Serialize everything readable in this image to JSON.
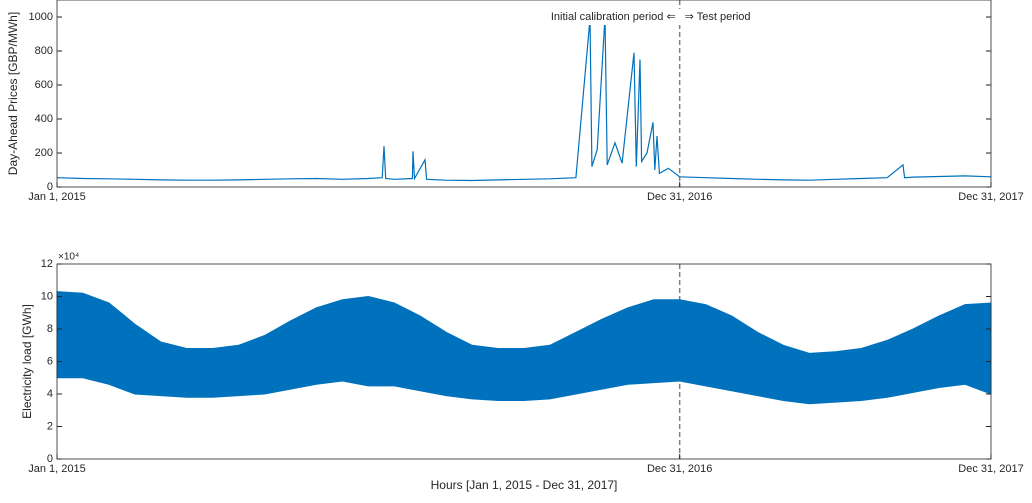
{
  "chart_data": [
    {
      "type": "line",
      "ylabel": "Day-Ahead Prices [GBP/MWh]",
      "color": "#0072BD",
      "x": [
        0,
        730,
        1460,
        2190,
        2920,
        3650,
        4380,
        5110,
        5840,
        6570,
        7300,
        8030,
        8760,
        9150,
        9200,
        9250,
        9490,
        10000,
        10017,
        10060,
        10354,
        10400,
        10950,
        11680,
        12410,
        13140,
        13870,
        14600,
        14997,
        15050,
        15200,
        15419,
        15480,
        15700,
        15900,
        16235,
        16300,
        16404,
        16450,
        16600,
        16770,
        16820,
        16882,
        16950,
        17200,
        17520,
        18250,
        18980,
        19710,
        20440,
        21170,
        21900,
        22630,
        23360,
        23803,
        23850,
        24090,
        24820,
        25550,
        26280
      ],
      "values": [
        55,
        50,
        48,
        45,
        42,
        40,
        40,
        42,
        45,
        48,
        50,
        45,
        50,
        55,
        240,
        50,
        45,
        50,
        210,
        50,
        160,
        45,
        40,
        38,
        42,
        45,
        48,
        55,
        990,
        120,
        220,
        1000,
        130,
        260,
        140,
        790,
        120,
        750,
        150,
        200,
        380,
        100,
        300,
        80,
        110,
        60,
        55,
        50,
        45,
        42,
        40,
        45,
        50,
        55,
        130,
        55,
        58,
        62,
        65,
        60
      ],
      "xlim": [
        0,
        26280
      ],
      "ylim": [
        0,
        1100
      ],
      "xticks": [
        {
          "value": 0,
          "label": "Jan 1, 2015"
        },
        {
          "value": 17520,
          "label": "Dec 31, 2016"
        },
        {
          "value": 26280,
          "label": "Dec 31, 2017"
        }
      ],
      "yticks": [
        0,
        200,
        400,
        600,
        800,
        1000
      ],
      "vline": 17520,
      "annotations": [
        "Initial calibration period ⇐",
        "⇒ Test period"
      ]
    },
    {
      "type": "band",
      "ylabel": "Electricity load [GWh]",
      "xlabel": "Hours [Jan 1, 2015 - Dec 31, 2017]",
      "y_multiplier": "×10⁴",
      "color": "#0072BD",
      "x": [
        0,
        730,
        1460,
        2190,
        2920,
        3650,
        4380,
        5110,
        5840,
        6570,
        7300,
        8030,
        8760,
        9490,
        10220,
        10950,
        11680,
        12410,
        13140,
        13870,
        14600,
        15330,
        16060,
        16790,
        17520,
        18250,
        18980,
        19710,
        20440,
        21170,
        21900,
        22630,
        23360,
        24090,
        24820,
        25550,
        26280
      ],
      "upper": [
        10.3,
        10.2,
        9.6,
        8.3,
        7.2,
        6.8,
        6.8,
        7.0,
        7.6,
        8.5,
        9.3,
        9.8,
        10.0,
        9.6,
        8.8,
        7.8,
        7.0,
        6.8,
        6.8,
        7.0,
        7.8,
        8.6,
        9.3,
        9.8,
        9.8,
        9.5,
        8.8,
        7.8,
        7.0,
        6.5,
        6.6,
        6.8,
        7.3,
        8.0,
        8.8,
        9.5,
        9.6
      ],
      "lower": [
        5.0,
        5.0,
        4.6,
        4.0,
        3.9,
        3.8,
        3.8,
        3.9,
        4.0,
        4.3,
        4.6,
        4.8,
        4.5,
        4.5,
        4.2,
        3.9,
        3.7,
        3.6,
        3.6,
        3.7,
        4.0,
        4.3,
        4.6,
        4.7,
        4.8,
        4.5,
        4.2,
        3.9,
        3.6,
        3.4,
        3.5,
        3.6,
        3.8,
        4.1,
        4.4,
        4.6,
        4.0
      ],
      "xlim": [
        0,
        26280
      ],
      "ylim": [
        0,
        12
      ],
      "xticks": [
        {
          "value": 0,
          "label": "Jan 1, 2015"
        },
        {
          "value": 17520,
          "label": "Dec 31, 2016"
        },
        {
          "value": 26280,
          "label": "Dec 31, 2017"
        }
      ],
      "yticks": [
        0,
        2,
        4,
        6,
        8,
        10,
        12
      ],
      "vline": 17520
    }
  ]
}
